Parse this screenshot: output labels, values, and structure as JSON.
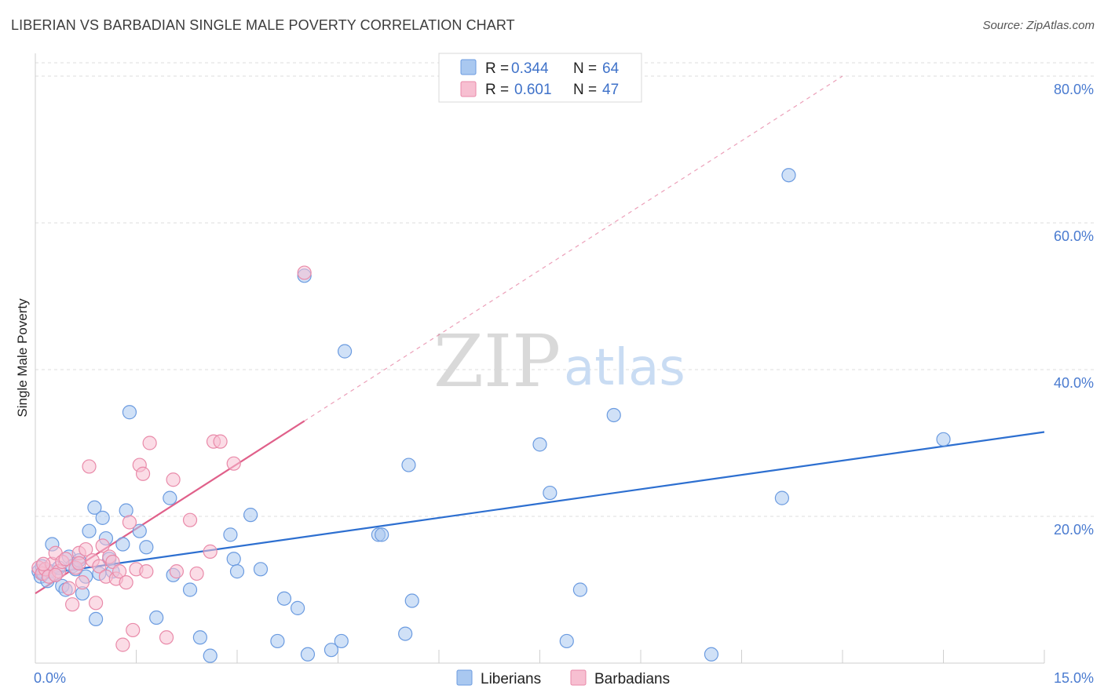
{
  "title": "LIBERIAN VS BARBADIAN SINGLE MALE POVERTY CORRELATION CHART",
  "source": "Source: ZipAtlas.com",
  "watermark": {
    "zip": "ZIP",
    "atlas": "atlas"
  },
  "legend": {
    "rows": [
      {
        "r_label": "R = ",
        "r_value": "0.344",
        "n_label": "N = ",
        "n_value": "64",
        "color": "#a9c8f0",
        "stroke": "#6b9be0"
      },
      {
        "r_label": "R = ",
        "r_value": "0.601",
        "n_label": "N = ",
        "n_value": "47",
        "color": "#f7bfd1",
        "stroke": "#e98aa9"
      }
    ]
  },
  "bottom_legend": [
    {
      "label": "Liberians",
      "color": "#a9c8f0",
      "stroke": "#6b9be0"
    },
    {
      "label": "Barbadians",
      "color": "#f7bfd1",
      "stroke": "#e98aa9"
    }
  ],
  "chart_data": {
    "type": "scatter",
    "title": "LIBERIAN VS BARBADIAN SINGLE MALE POVERTY CORRELATION CHART",
    "xlabel": "",
    "ylabel": "Single Male Poverty",
    "xlim": [
      0,
      15
    ],
    "ylim": [
      0,
      80
    ],
    "x_tick_labels": [
      "0.0%",
      "15.0%"
    ],
    "y_ticks": [
      20,
      40,
      60,
      80
    ],
    "y_tick_labels": [
      "20.0%",
      "40.0%",
      "60.0%",
      "80.0%"
    ],
    "grid": true,
    "series": [
      {
        "name": "Liberians",
        "color": "#6b9be0",
        "fill": "#a9c8f0",
        "trend": {
          "x": [
            0,
            15
          ],
          "y": [
            12.0,
            31.5
          ],
          "color": "#2d6fd0"
        },
        "points": [
          [
            0.05,
            12.5
          ],
          [
            0.08,
            11.8
          ],
          [
            0.1,
            13.2
          ],
          [
            0.12,
            12.2
          ],
          [
            0.15,
            12.8
          ],
          [
            0.18,
            11.2
          ],
          [
            0.22,
            12.5
          ],
          [
            0.25,
            16.2
          ],
          [
            0.3,
            12.0
          ],
          [
            0.35,
            13.0
          ],
          [
            0.4,
            10.5
          ],
          [
            0.45,
            10.0
          ],
          [
            0.5,
            14.5
          ],
          [
            0.55,
            13.2
          ],
          [
            0.6,
            12.8
          ],
          [
            0.65,
            14.0
          ],
          [
            0.7,
            9.5
          ],
          [
            0.75,
            11.8
          ],
          [
            0.8,
            18.0
          ],
          [
            0.9,
            6.0
          ],
          [
            0.88,
            21.2
          ],
          [
            1.0,
            19.8
          ],
          [
            1.05,
            17.0
          ],
          [
            1.1,
            14.2
          ],
          [
            1.15,
            12.5
          ],
          [
            1.3,
            16.2
          ],
          [
            1.35,
            20.8
          ],
          [
            1.4,
            34.2
          ],
          [
            1.55,
            18.0
          ],
          [
            1.65,
            15.8
          ],
          [
            2.0,
            22.5
          ],
          [
            2.05,
            12.0
          ],
          [
            1.8,
            6.2
          ],
          [
            2.3,
            10.0
          ],
          [
            2.45,
            3.5
          ],
          [
            2.6,
            1.0
          ],
          [
            2.9,
            17.5
          ],
          [
            2.95,
            14.2
          ],
          [
            3.0,
            12.5
          ],
          [
            3.2,
            20.2
          ],
          [
            3.35,
            12.8
          ],
          [
            3.6,
            3.0
          ],
          [
            3.7,
            8.8
          ],
          [
            3.9,
            7.5
          ],
          [
            4.0,
            52.8
          ],
          [
            4.05,
            1.2
          ],
          [
            4.4,
            1.8
          ],
          [
            4.55,
            3.0
          ],
          [
            4.6,
            42.5
          ],
          [
            5.1,
            17.5
          ],
          [
            5.15,
            17.5
          ],
          [
            5.5,
            4.0
          ],
          [
            5.55,
            27.0
          ],
          [
            5.6,
            8.5
          ],
          [
            7.5,
            29.8
          ],
          [
            7.65,
            23.2
          ],
          [
            7.9,
            3.0
          ],
          [
            8.1,
            10.0
          ],
          [
            8.6,
            33.8
          ],
          [
            10.05,
            1.2
          ],
          [
            11.1,
            22.5
          ],
          [
            11.2,
            66.5
          ],
          [
            13.5,
            30.5
          ],
          [
            0.95,
            12.2
          ]
        ]
      },
      {
        "name": "Barbadians",
        "color": "#e98aa9",
        "fill": "#f7bfd1",
        "trend": {
          "x": [
            0,
            4.0
          ],
          "y": [
            9.5,
            33.0
          ],
          "color": "#e0608a",
          "dashed_extension": {
            "x": [
              4.0,
              12.0
            ],
            "y": [
              33.0,
              80.0
            ]
          }
        },
        "points": [
          [
            0.05,
            13.0
          ],
          [
            0.1,
            12.2
          ],
          [
            0.15,
            12.8
          ],
          [
            0.2,
            11.8
          ],
          [
            0.25,
            13.5
          ],
          [
            0.3,
            15.0
          ],
          [
            0.35,
            12.5
          ],
          [
            0.4,
            13.8
          ],
          [
            0.45,
            14.2
          ],
          [
            0.5,
            10.2
          ],
          [
            0.55,
            8.0
          ],
          [
            0.6,
            13.0
          ],
          [
            0.65,
            15.0
          ],
          [
            0.7,
            11.0
          ],
          [
            0.75,
            15.5
          ],
          [
            0.8,
            26.8
          ],
          [
            0.85,
            14.0
          ],
          [
            0.9,
            8.2
          ],
          [
            0.95,
            13.2
          ],
          [
            1.0,
            16.0
          ],
          [
            1.05,
            11.8
          ],
          [
            1.1,
            14.5
          ],
          [
            1.15,
            13.8
          ],
          [
            1.2,
            11.5
          ],
          [
            1.25,
            12.5
          ],
          [
            1.3,
            2.5
          ],
          [
            1.35,
            11.0
          ],
          [
            1.4,
            19.2
          ],
          [
            1.45,
            4.5
          ],
          [
            1.5,
            12.8
          ],
          [
            1.55,
            27.0
          ],
          [
            1.6,
            25.8
          ],
          [
            1.65,
            12.5
          ],
          [
            1.7,
            30.0
          ],
          [
            1.95,
            3.5
          ],
          [
            2.05,
            25.0
          ],
          [
            2.1,
            12.5
          ],
          [
            2.3,
            19.5
          ],
          [
            2.4,
            12.2
          ],
          [
            2.6,
            15.2
          ],
          [
            2.65,
            30.2
          ],
          [
            2.75,
            30.2
          ],
          [
            2.95,
            27.2
          ],
          [
            4.0,
            53.2
          ],
          [
            0.3,
            12.0
          ],
          [
            0.12,
            13.5
          ],
          [
            0.65,
            13.6
          ]
        ]
      }
    ]
  }
}
